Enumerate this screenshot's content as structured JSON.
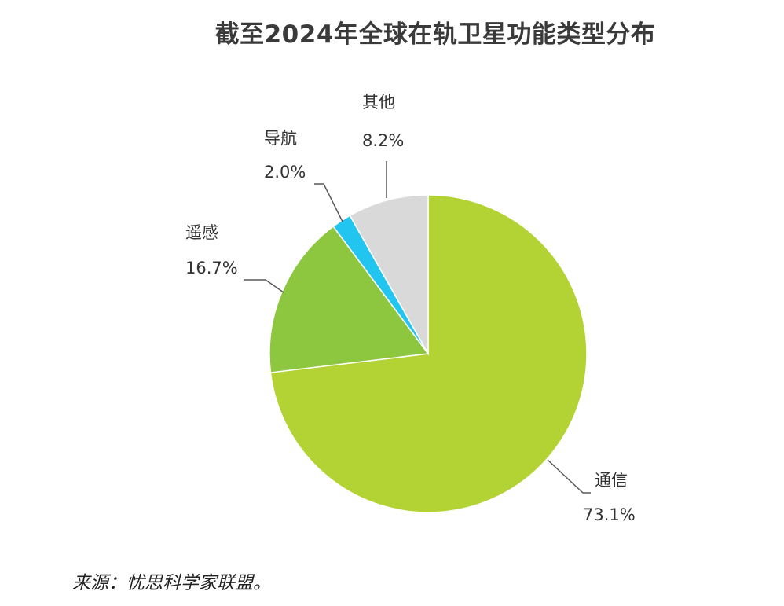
{
  "title": "截至2024年全球在轨卫星功能类型分布",
  "source": "来源：忧思科学家联盟。",
  "chart_data": {
    "type": "pie",
    "start_angle_deg": 0,
    "direction": "clockwise",
    "slices": [
      {
        "label": "通信",
        "value": 73.1,
        "value_label": "73.1%",
        "color": "#b3d335"
      },
      {
        "label": "遥感",
        "value": 16.7,
        "value_label": "16.7%",
        "color": "#8dc63f"
      },
      {
        "label": "导航",
        "value": 2.0,
        "value_label": "2.0%",
        "color": "#22c5f0"
      },
      {
        "label": "其他",
        "value": 8.2,
        "value_label": "8.2%",
        "color": "#d9d9d9"
      }
    ]
  }
}
